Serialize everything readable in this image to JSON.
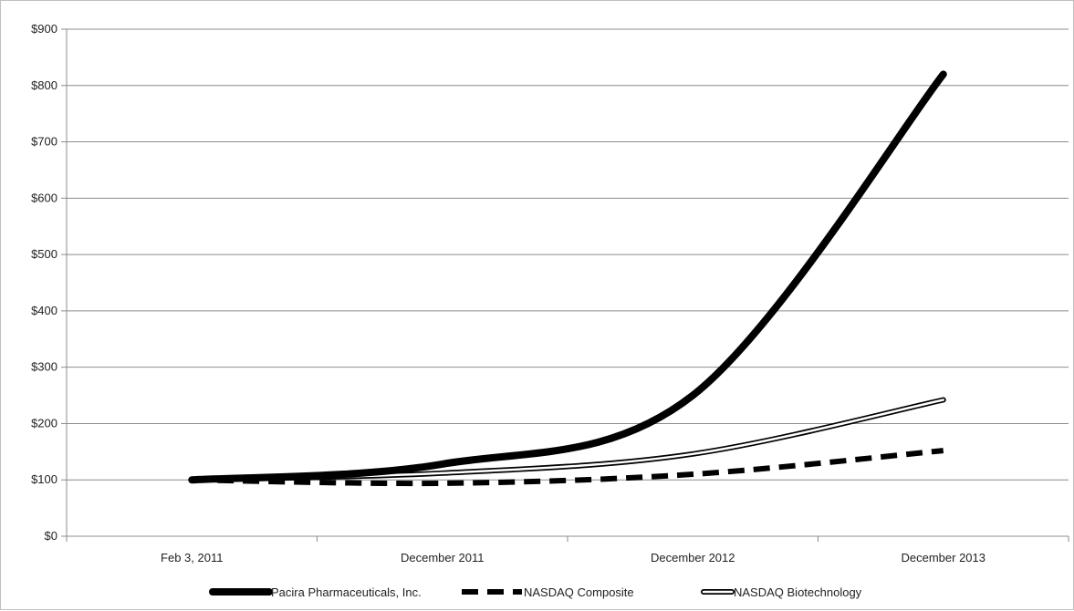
{
  "chart_data": {
    "type": "line",
    "categories": [
      "Feb 3, 2011",
      "December 2011",
      "December 2012",
      "December 2013"
    ],
    "ylim": [
      0,
      900
    ],
    "y_ticks": [
      "$0",
      "$100",
      "$200",
      "$300",
      "$400",
      "$500",
      "$600",
      "$700",
      "$800",
      "$900"
    ],
    "grid": "horizontal",
    "legend_position": "bottom",
    "series": [
      {
        "name": "Pacira Pharmaceuticals, Inc.",
        "values": [
          100,
          128,
          250,
          820
        ],
        "style": "thick-solid",
        "color": "#000000"
      },
      {
        "name": "NASDAQ Composite",
        "values": [
          100,
          94,
          110,
          152
        ],
        "style": "thick-dashed",
        "color": "#000000"
      },
      {
        "name": "NASDAQ Biotechnology",
        "values": [
          100,
          112,
          146,
          242
        ],
        "style": "double-outline",
        "color": "#000000"
      }
    ]
  }
}
